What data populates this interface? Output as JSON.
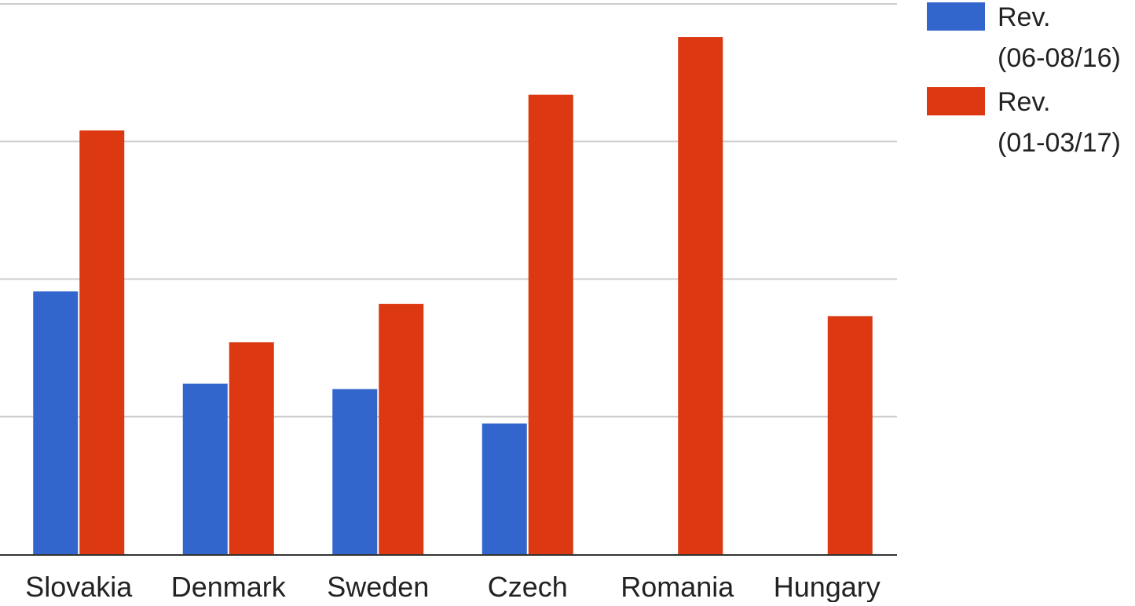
{
  "chart_data": {
    "type": "bar",
    "categories": [
      "Slovakia",
      "Denmark",
      "Sweden",
      "Czech",
      "Romania",
      "Hungary"
    ],
    "series": [
      {
        "name": "Rev.\n(06-08/16)",
        "color": "#3366cc",
        "values": [
          1.91,
          1.24,
          1.2,
          0.95,
          null,
          null
        ]
      },
      {
        "name": "Rev.\n(01-03/17)",
        "color": "#dc3912",
        "values": [
          3.08,
          1.54,
          1.82,
          3.34,
          3.76,
          1.73
        ]
      }
    ],
    "ylim": [
      0,
      4
    ],
    "grid": true,
    "legend_position": "top-right",
    "title": "",
    "xlabel": "",
    "ylabel": ""
  }
}
